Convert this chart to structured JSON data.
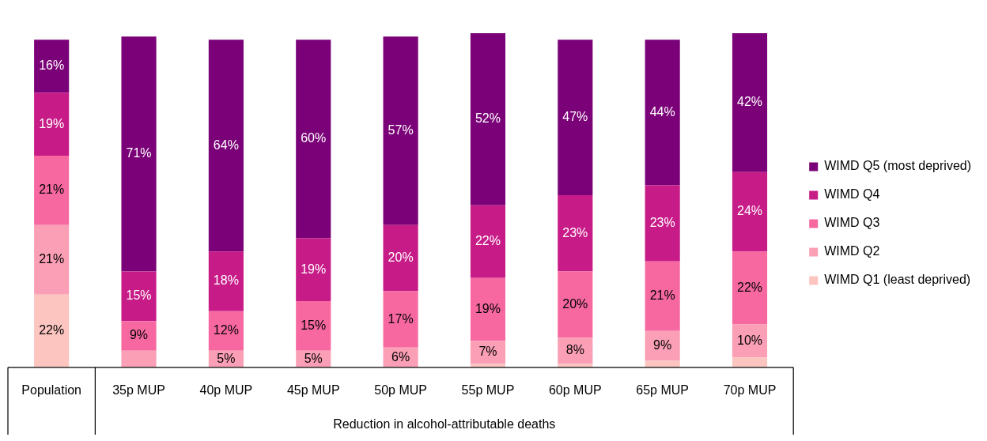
{
  "chart_data": {
    "type": "bar",
    "stacked": true,
    "categories": [
      "Population",
      "35p MUP",
      "40p MUP",
      "45p MUP",
      "50p MUP",
      "55p MUP",
      "60p MUP",
      "65p MUP",
      "70p MUP"
    ],
    "ylim": [
      0,
      101
    ],
    "tick_labels": "x",
    "grid": false,
    "legend": "right",
    "annotations": [
      "Reduction in alcohol-attributable deaths"
    ],
    "series": [
      {
        "name": "WIMD Q1 (least deprived)",
        "color": "#fcc5c0",
        "values": [
          22,
          0,
          0,
          0,
          0,
          1,
          1,
          2,
          3
        ],
        "value_labels": [
          "22%",
          null,
          null,
          null,
          null,
          null,
          null,
          null,
          null
        ]
      },
      {
        "name": "WIMD Q2",
        "color": "#fa9fb5",
        "values": [
          21,
          5,
          5,
          5,
          6,
          7,
          8,
          9,
          10
        ],
        "value_labels": [
          "21%",
          null,
          "5%",
          "5%",
          "6%",
          "7%",
          "8%",
          "9%",
          "10%"
        ]
      },
      {
        "name": "WIMD Q3",
        "color": "#f768a1",
        "values": [
          21,
          9,
          12,
          15,
          17,
          19,
          20,
          21,
          22
        ],
        "value_labels": [
          "21%",
          "9%",
          "12%",
          "15%",
          "17%",
          "19%",
          "20%",
          "21%",
          "22%"
        ]
      },
      {
        "name": "WIMD Q4",
        "color": "#c71b87",
        "values": [
          19,
          15,
          18,
          19,
          20,
          22,
          23,
          23,
          24
        ],
        "value_labels": [
          "19%",
          "15%",
          "18%",
          "19%",
          "20%",
          "22%",
          "23%",
          "23%",
          "24%"
        ]
      },
      {
        "name": "WIMD Q5 (most deprived)",
        "color": "#7a0177",
        "values": [
          16,
          71,
          64,
          60,
          57,
          52,
          47,
          44,
          42
        ],
        "value_labels": [
          "16%",
          "71%",
          "64%",
          "60%",
          "57%",
          "52%",
          "47%",
          "44%",
          "42%"
        ]
      }
    ]
  }
}
